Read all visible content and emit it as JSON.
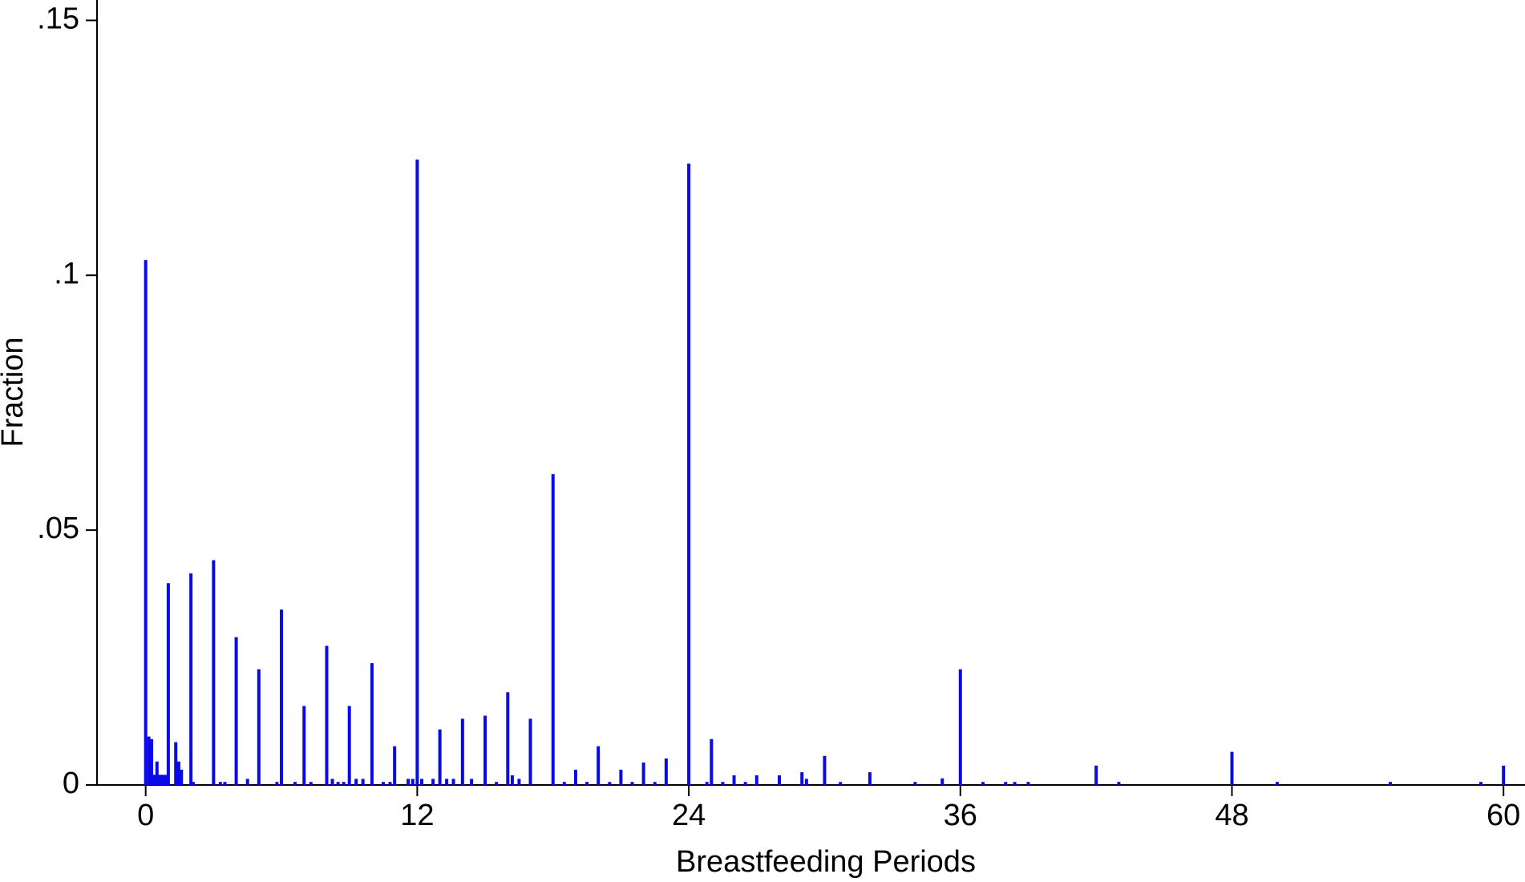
{
  "chart_data": {
    "type": "spike",
    "x_label": "Breastfeeding Periods",
    "y_label": "Fraction",
    "color": "#0a0ae8",
    "x": [
      0,
      0.14,
      0.26,
      0.38,
      0.5,
      0.62,
      0.75,
      0.88,
      1,
      1.33,
      1.46,
      1.58,
      2,
      2.1,
      3,
      3.3,
      3.5,
      4,
      4.5,
      5,
      5.8,
      6,
      6.6,
      7,
      7.3,
      8,
      8.25,
      8.5,
      8.75,
      9,
      9.3,
      9.6,
      10,
      10.5,
      10.8,
      11,
      11.6,
      11.8,
      12,
      12.2,
      12.7,
      13,
      13.3,
      13.6,
      14,
      14.4,
      15,
      15.5,
      16,
      16.2,
      16.5,
      17,
      18,
      18.5,
      19,
      19.5,
      20,
      20.5,
      21,
      21.5,
      22,
      22.5,
      23,
      24,
      24.8,
      25,
      25.5,
      26,
      26.5,
      27,
      28,
      29,
      29.2,
      30,
      30.7,
      32,
      34,
      35.2,
      36,
      37,
      38,
      38.4,
      39,
      42,
      43,
      48,
      50,
      55,
      59,
      60
    ],
    "values": [
      0.103,
      0.0095,
      0.009,
      0.002,
      0.0046,
      0.002,
      0.002,
      0.002,
      0.0396,
      0.0084,
      0.0046,
      0.003,
      0.0415,
      0.0006,
      0.0441,
      0.0006,
      0.0006,
      0.029,
      0.0012,
      0.0227,
      0.0006,
      0.0344,
      0.0006,
      0.0155,
      0.0006,
      0.0273,
      0.0012,
      0.0006,
      0.0006,
      0.0155,
      0.0012,
      0.0012,
      0.0239,
      0.0006,
      0.0006,
      0.0076,
      0.0012,
      0.0012,
      0.1227,
      0.0012,
      0.0012,
      0.0109,
      0.0012,
      0.0012,
      0.013,
      0.0012,
      0.0136,
      0.0006,
      0.0182,
      0.0019,
      0.0012,
      0.013,
      0.061,
      0.0006,
      0.003,
      0.0006,
      0.0076,
      0.0006,
      0.003,
      0.0006,
      0.0044,
      0.0006,
      0.0052,
      0.1219,
      0.0006,
      0.009,
      0.0006,
      0.0019,
      0.0006,
      0.0019,
      0.0019,
      0.0025,
      0.0012,
      0.0057,
      0.0006,
      0.0025,
      0.0006,
      0.0013,
      0.0227,
      0.0006,
      0.0006,
      0.0006,
      0.0006,
      0.0038,
      0.0006,
      0.0065,
      0.0006,
      0.0006,
      0.0006,
      0.0038
    ],
    "xlim": [
      -2.15,
      60.95
    ],
    "ylim": [
      0,
      0.154
    ],
    "xticks": [
      0,
      12,
      24,
      36,
      48,
      60
    ],
    "yticks": [
      0,
      {
        "value": 0.05,
        "label": ".05"
      },
      {
        "value": 0.1,
        "label": ".1"
      },
      {
        "value": 0.15,
        "label": ".15"
      }
    ]
  }
}
